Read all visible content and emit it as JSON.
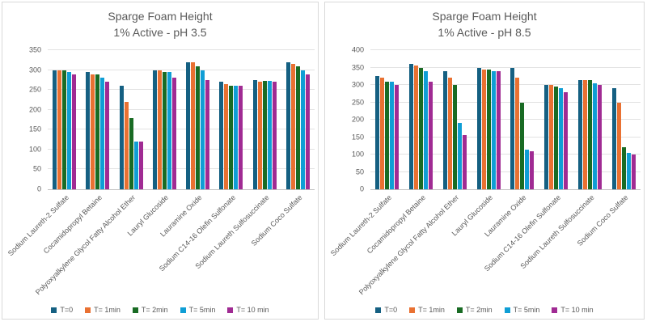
{
  "page": {
    "background": "#FFFFFF",
    "panel_border": "#D9D9D9"
  },
  "charts": [
    {
      "title_line1": "Sparge Foam Height",
      "title_line2": "1% Active - pH 3.5",
      "chart_data": {
        "type": "bar",
        "title": "Sparge Foam Height 1% Active - pH 3.5",
        "categories": [
          "Sodium Laureth-2 Sulfate",
          "Cocamidopropyl Betaine",
          "Polyoxyalkylene Glycol Fatty Alcohol Ether",
          "Lauryl Glucoside",
          "Lauramine Oxide",
          "Sodium C14-16 Olefin Sulfonate",
          "Sodium Laureth Sulfosuccinate",
          "Sodium Coco Sulfate"
        ],
        "series": [
          {
            "name": "T=0",
            "color": "#156082",
            "values": [
              300,
              295,
              260,
              300,
              320,
              270,
              275,
              320
            ]
          },
          {
            "name": "T= 1min",
            "color": "#E97132",
            "values": [
              300,
              290,
              220,
              300,
              320,
              265,
              270,
              315
            ]
          },
          {
            "name": "T= 2min",
            "color": "#196B24",
            "values": [
              300,
              290,
              180,
              295,
              310,
              260,
              272,
              310
            ]
          },
          {
            "name": "T= 5min",
            "color": "#0F9ED5",
            "values": [
              295,
              280,
              120,
              295,
              300,
              260,
              272,
              300
            ]
          },
          {
            "name": "T= 10 min",
            "color": "#A02B93",
            "values": [
              290,
              270,
              120,
              280,
              275,
              260,
              270,
              290
            ]
          }
        ],
        "ylim": [
          0,
          350
        ],
        "yticks": [
          0,
          50,
          100,
          150,
          200,
          250,
          300,
          350
        ],
        "grid": true,
        "legend_position": "bottom"
      }
    },
    {
      "title_line1": "Sparge Foam Height",
      "title_line2": "1% Active - pH 8.5",
      "chart_data": {
        "type": "bar",
        "title": "Sparge Foam Height 1% Active - pH 8.5",
        "categories": [
          "Sodium Laureth-2 Sulfate",
          "Cocamidopropyl Betaine",
          "Polyoxyalkylene Glycol Fatty Alcohol Ether",
          "Lauryl Glucoside",
          "Lauramine Oxide",
          "Sodium C14-16 Olefin Sulfonate",
          "Sodium Laureth Sulfosuccinate",
          "Sodium Coco Sulfate"
        ],
        "series": [
          {
            "name": "T=0",
            "color": "#156082",
            "values": [
              325,
              360,
              340,
              350,
              350,
              300,
              315,
              290
            ]
          },
          {
            "name": "T= 1min",
            "color": "#E97132",
            "values": [
              320,
              355,
              320,
              345,
              320,
              300,
              315,
              250
            ]
          },
          {
            "name": "T= 2min",
            "color": "#196B24",
            "values": [
              310,
              350,
              300,
              345,
              250,
              295,
              315,
              120
            ]
          },
          {
            "name": "T= 5min",
            "color": "#0F9ED5",
            "values": [
              310,
              340,
              190,
              340,
              115,
              290,
              305,
              105
            ]
          },
          {
            "name": "T= 10 min",
            "color": "#A02B93",
            "values": [
              300,
              310,
              155,
              340,
              110,
              280,
              300,
              100
            ]
          }
        ],
        "ylim": [
          0,
          400
        ],
        "yticks": [
          0,
          50,
          100,
          150,
          200,
          250,
          300,
          350,
          400
        ],
        "grid": true,
        "legend_position": "bottom"
      }
    }
  ]
}
